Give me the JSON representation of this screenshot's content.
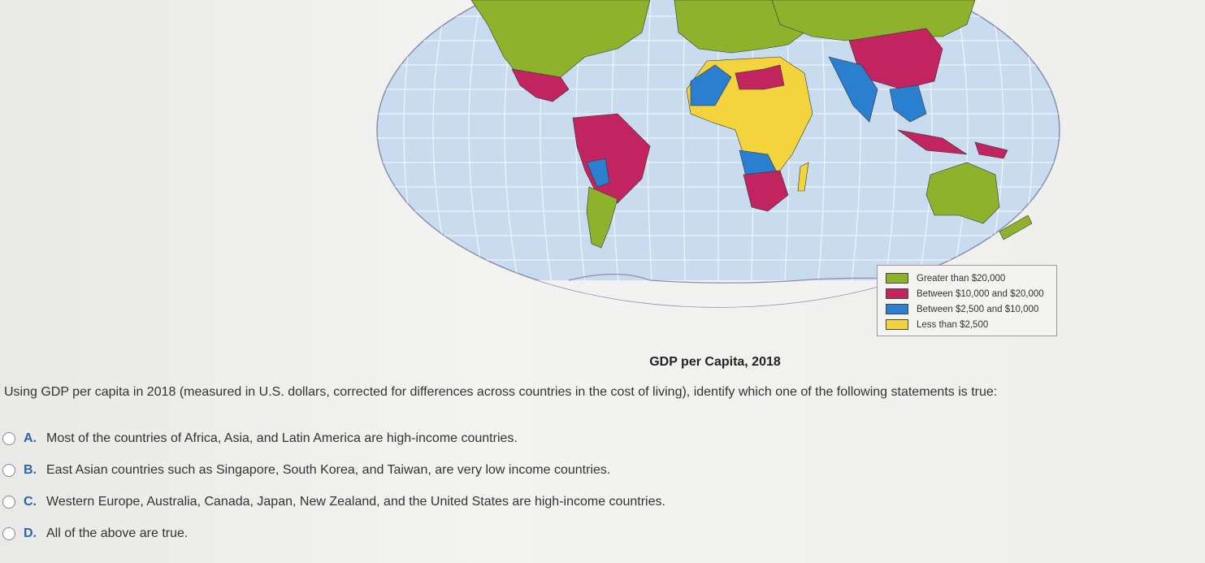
{
  "map": {
    "title": "GDP per Capita, 2018",
    "legend": [
      {
        "label": "Greater than $20,000",
        "color": "#8fb22c"
      },
      {
        "label": "Between $10,000 and $20,000",
        "color": "#c1245f"
      },
      {
        "label": "Between $2,500 and $10,000",
        "color": "#2a7fd0"
      },
      {
        "label": "Less than $2,500",
        "color": "#f4d43c"
      }
    ]
  },
  "question": "Using GDP per capita in 2018 (measured in U.S. dollars, corrected for differences across countries in the cost of living), identify which one of the following statements is true:",
  "options": [
    {
      "letter": "A.",
      "text": "Most of the countries of Africa, Asia, and Latin America are high-income countries."
    },
    {
      "letter": "B.",
      "text": "East Asian countries such as Singapore, South Korea, and Taiwan, are very low income countries."
    },
    {
      "letter": "C.",
      "text": "Western Europe, Australia, Canada, Japan, New Zealand, and the United States are high-income countries."
    },
    {
      "letter": "D.",
      "text": "All of the above are true."
    }
  ]
}
